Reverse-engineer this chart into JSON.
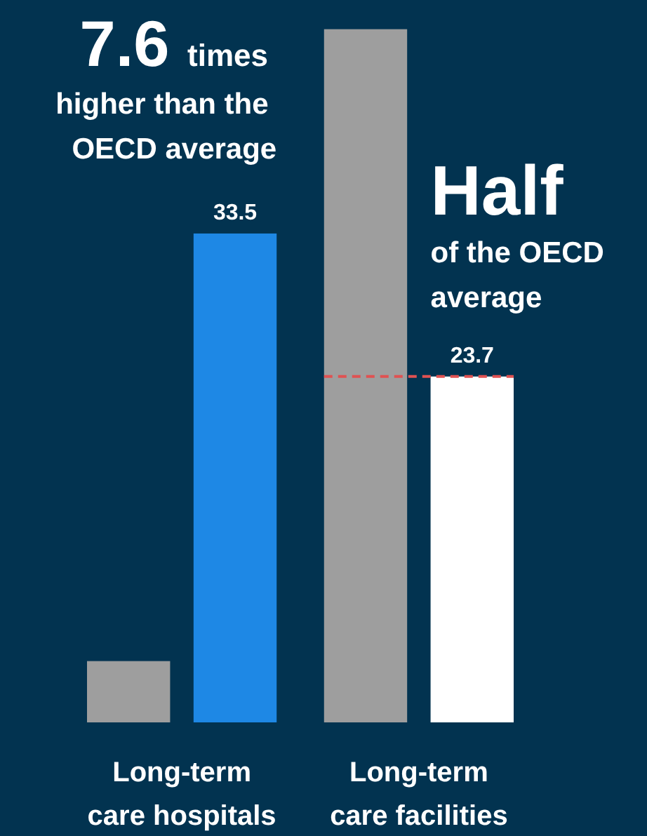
{
  "chart_data": {
    "type": "bar",
    "categories": [
      "Long-term care hospitals",
      "Long-term care facilities"
    ],
    "series": [
      {
        "color": "#9e9e9e",
        "values": [
          4.2,
          47.5
        ]
      },
      {
        "colors": [
          "#1e88e5",
          "#ffffff"
        ],
        "values": [
          33.5,
          23.7
        ],
        "value_labels": [
          "33.5",
          "23.7"
        ]
      }
    ],
    "ylim": [
      0,
      49.5
    ],
    "ref_lines": [
      {
        "axis": "y",
        "value": 23.7,
        "color": "#e05252",
        "line_style": "dashed"
      }
    ],
    "annotations": [
      "7.6 times higher than the OECD average",
      "Half of the OECD average"
    ]
  }
}
